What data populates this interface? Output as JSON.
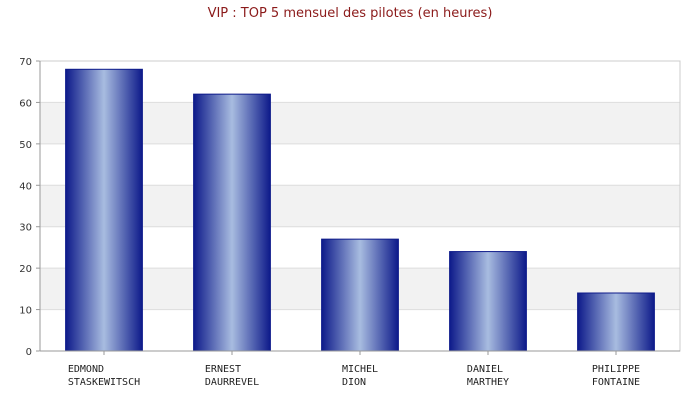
{
  "chart_data": {
    "type": "bar",
    "title": "VIP : TOP 5 mensuel des pilotes (en heures)",
    "categories": [
      [
        "EDMOND",
        "STASKEWITSCH"
      ],
      [
        "ERNEST",
        "DAURREVEL"
      ],
      [
        "MICHEL",
        "DION"
      ],
      [
        "DANIEL",
        "MARTHEY"
      ],
      [
        "PHILIPPE",
        "FONTAINE"
      ]
    ],
    "values": [
      68,
      62,
      27,
      24,
      14
    ],
    "ylim": [
      0,
      70
    ],
    "yticks": [
      0,
      10,
      20,
      30,
      40,
      50,
      60,
      70
    ],
    "grid": true,
    "colors": {
      "bar_edge": "#0d1a8a",
      "bar_center": "#a8bce0",
      "title": "#8b1a1a",
      "band": "#f2f2f2",
      "grid": "#dddddd"
    }
  }
}
